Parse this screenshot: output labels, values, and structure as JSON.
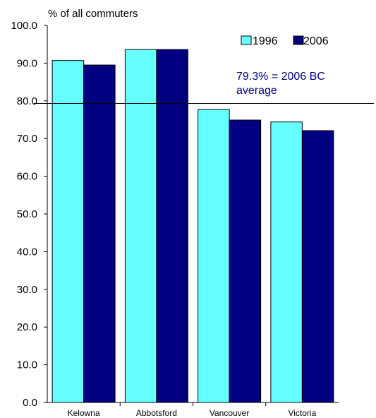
{
  "chart_data": {
    "type": "bar",
    "ylabel": "% of all commuters",
    "xlabel": "",
    "ylim": [
      0,
      100
    ],
    "yticks": [
      "0.0",
      "10.0",
      "20.0",
      "30.0",
      "40.0",
      "50.0",
      "60.0",
      "70.0",
      "80.0",
      "90.0",
      "100.0"
    ],
    "categories": [
      "Kelowna",
      "Abbotsford",
      "Vancouver",
      "Victoria"
    ],
    "series": [
      {
        "name": "1996",
        "values": [
          90.7,
          93.6,
          77.7,
          74.4
        ],
        "color": "#66ffff"
      },
      {
        "name": "2006",
        "values": [
          89.5,
          93.6,
          74.9,
          72.1
        ],
        "color": "#000080"
      }
    ],
    "reference_line": {
      "value": 79.3,
      "label_line1": "79.3% = 2006 BC",
      "label_line2": "average",
      "label_color": "#000080"
    },
    "legend_position": "top-right",
    "grid": false
  }
}
